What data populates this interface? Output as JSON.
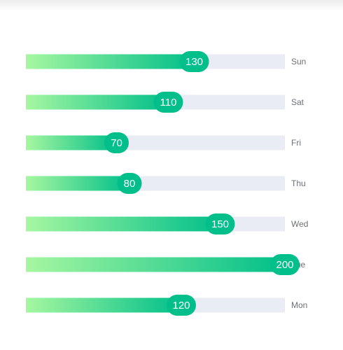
{
  "chart_data": {
    "type": "bar",
    "orientation": "horizontal",
    "categories": [
      "Mon",
      "Tue",
      "Wed",
      "Thu",
      "Fri",
      "Sat",
      "Sun"
    ],
    "values": [
      120,
      200,
      150,
      80,
      70,
      110,
      130
    ],
    "xlim": [
      0,
      200
    ],
    "grid": false,
    "show_background_track": true
  },
  "colors": {
    "bar_start": "#a6f7a0",
    "bar_end": "#00bf8a",
    "label_bubble": "#00bf8a",
    "track": "#e9ecf5",
    "category_text": "#6e7079",
    "value_text": "#ffffff"
  }
}
